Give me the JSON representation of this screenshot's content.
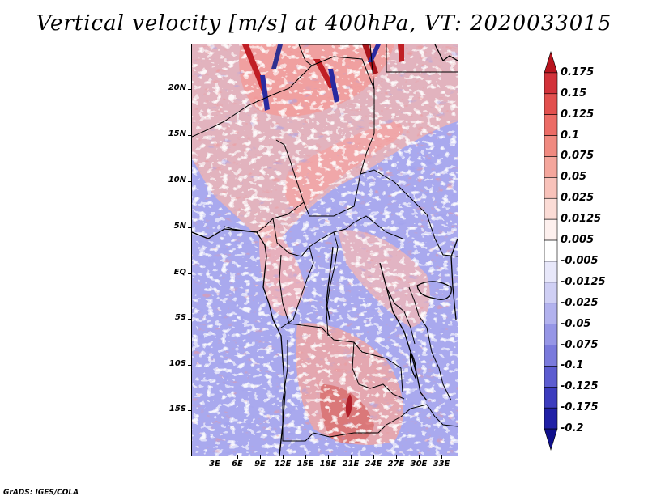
{
  "title": "Vertical velocity [m/s] at 400hPa, VT: 2020033015",
  "credit": "GrADS: IGES/COLA",
  "map": {
    "lat_labels": [
      "20N",
      "15N",
      "10N",
      "5N",
      "EQ",
      "5S",
      "10S",
      "15S"
    ],
    "lon_labels": [
      "3E",
      "6E",
      "9E",
      "12E",
      "15E",
      "18E",
      "21E",
      "24E",
      "27E",
      "30E",
      "33E"
    ]
  },
  "colorbar": {
    "labels": [
      "0.175",
      "0.15",
      "0.125",
      "0.1",
      "0.075",
      "0.05",
      "0.025",
      "0.0125",
      "0.005",
      "-0.005",
      "-0.0125",
      "-0.025",
      "-0.05",
      "-0.075",
      "-0.1",
      "-0.125",
      "-0.175",
      "-0.2"
    ],
    "colors": [
      "#b8141e",
      "#d2323a",
      "#e2504e",
      "#ec6c66",
      "#f08a80",
      "#f4a69c",
      "#f8c2ba",
      "#fbdcd6",
      "#fdf0ee",
      "#ffffff",
      "#e8e8fa",
      "#cfcff4",
      "#b2b2ee",
      "#9696e6",
      "#7a7adc",
      "#5c5cd0",
      "#3c3cbe",
      "#2020a6",
      "#10108c"
    ]
  }
}
